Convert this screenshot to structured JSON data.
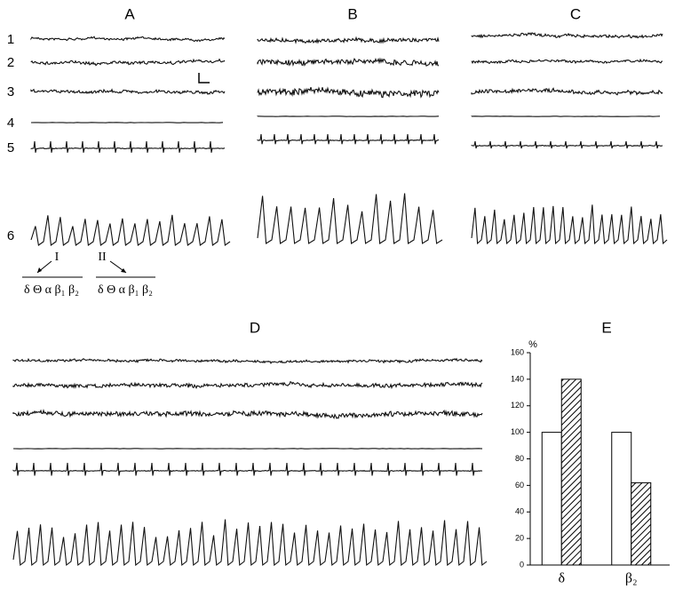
{
  "panel_labels": [
    "A",
    "B",
    "C",
    "D"
  ],
  "trace_labels": [
    "1",
    "2",
    "3",
    "4",
    "5",
    "6"
  ],
  "spectrum_groups": [
    {
      "label": "I",
      "bands": "δ Θ α β₁ β₂"
    },
    {
      "label": "II",
      "bands": "δ Θ α β₁ β₂"
    }
  ],
  "chart_data": {
    "type": "bar",
    "title": "E",
    "y_label": "%",
    "categories": [
      "δ",
      "β₂"
    ],
    "series": [
      {
        "color": "#ffffff",
        "pattern": "none",
        "values": [
          100,
          100
        ]
      },
      {
        "color": "#000000",
        "pattern": "diagonal-hatch",
        "values": [
          140,
          62
        ]
      }
    ],
    "ylim": [
      0,
      160
    ],
    "yticks": [
      0,
      20,
      40,
      60,
      80,
      100,
      120,
      140,
      160
    ],
    "grid": false
  }
}
